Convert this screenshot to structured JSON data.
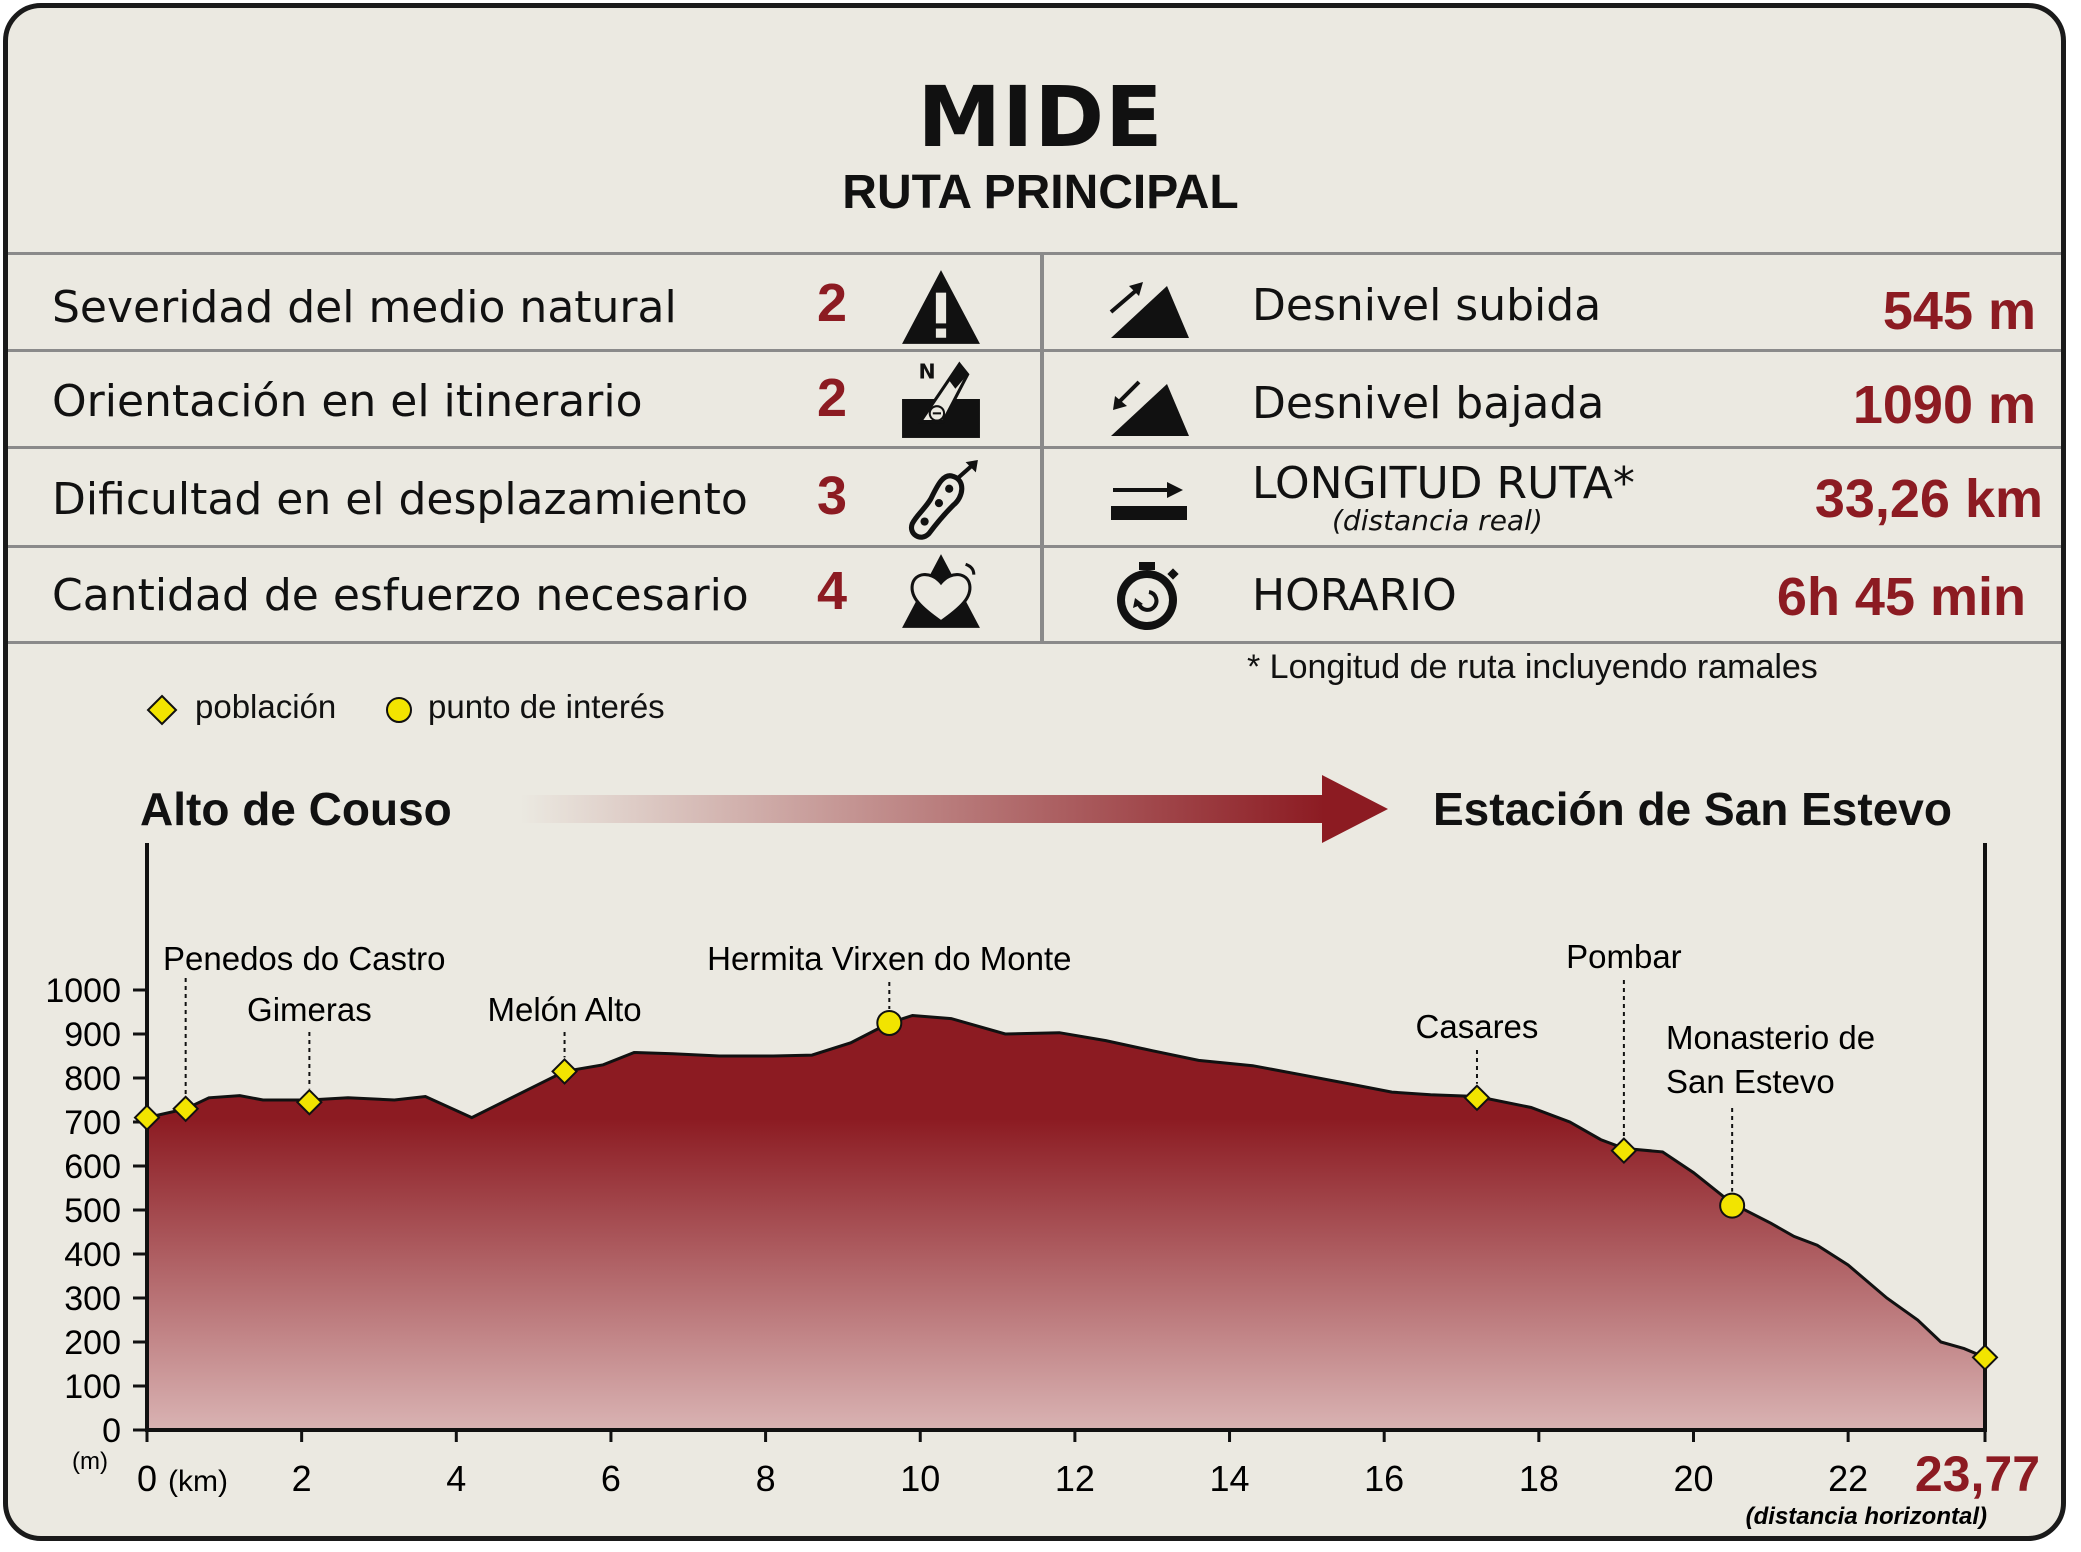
{
  "header": {
    "title": "MIDE",
    "subtitle": "RUTA PRINCIPAL"
  },
  "mide": [
    {
      "label": "Severidad del medio natural",
      "value": "2",
      "icon": "warning-triangle-icon"
    },
    {
      "label": "Orientación en el itinerario",
      "value": "2",
      "icon": "compass-orientation-icon"
    },
    {
      "label": "Dificultad en el desplazamiento",
      "value": "3",
      "icon": "footprint-icon"
    },
    {
      "label": "Cantidad de esfuerzo necesario",
      "value": "4",
      "icon": "heart-effort-icon"
    }
  ],
  "stats": [
    {
      "label": "Desnivel subida",
      "value": "545 m",
      "icon": "ascent-icon"
    },
    {
      "label": "Desnivel bajada",
      "value": "1090 m",
      "icon": "descent-icon"
    },
    {
      "label": "LONGITUD RUTA*",
      "sub": "(distancia real)",
      "value": "33,26 km",
      "icon": "length-arrow-icon"
    },
    {
      "label": "HORARIO",
      "value": "6h 45 min",
      "icon": "stopwatch-icon"
    }
  ],
  "footnote": "* Longitud de ruta incluyendo ramales",
  "legend": {
    "town": "población",
    "poi": "punto de interés"
  },
  "route": {
    "start": "Alto de Couso",
    "end": "Estación de San Estevo"
  },
  "colors": {
    "accent": "#8c1b22",
    "marker": "#f2e400",
    "fill_top": "#8c1b22",
    "fill_bottom": "#d9b3b3",
    "background": "#ebe9e1"
  },
  "chart_data": {
    "type": "area",
    "x_unit": "(km)",
    "y_unit": "(m)",
    "x_end_label": "23,77",
    "x_end_caption": "(distancia horizontal)",
    "xlim": [
      0,
      23.77
    ],
    "ylim": [
      0,
      1000
    ],
    "x_ticks": [
      0,
      2,
      4,
      6,
      8,
      10,
      12,
      14,
      16,
      18,
      20,
      22
    ],
    "y_ticks": [
      0,
      100,
      200,
      300,
      400,
      500,
      600,
      700,
      800,
      900,
      1000
    ],
    "profile": [
      [
        0,
        710
      ],
      [
        0.5,
        730
      ],
      [
        0.8,
        755
      ],
      [
        1.2,
        760
      ],
      [
        1.5,
        750
      ],
      [
        2.1,
        750
      ],
      [
        2.6,
        755
      ],
      [
        3.2,
        750
      ],
      [
        3.6,
        758
      ],
      [
        4.2,
        710
      ],
      [
        4.6,
        745
      ],
      [
        5.0,
        780
      ],
      [
        5.4,
        815
      ],
      [
        5.9,
        830
      ],
      [
        6.3,
        858
      ],
      [
        6.8,
        855
      ],
      [
        7.4,
        850
      ],
      [
        8.1,
        850
      ],
      [
        8.6,
        852
      ],
      [
        9.1,
        880
      ],
      [
        9.6,
        925
      ],
      [
        9.9,
        942
      ],
      [
        10.4,
        935
      ],
      [
        11.1,
        900
      ],
      [
        11.8,
        903
      ],
      [
        12.4,
        885
      ],
      [
        13.0,
        862
      ],
      [
        13.6,
        840
      ],
      [
        14.3,
        828
      ],
      [
        15.0,
        805
      ],
      [
        15.6,
        785
      ],
      [
        16.1,
        768
      ],
      [
        16.6,
        762
      ],
      [
        17.2,
        758
      ],
      [
        17.9,
        733
      ],
      [
        18.4,
        700
      ],
      [
        18.8,
        660
      ],
      [
        19.1,
        640
      ],
      [
        19.6,
        632
      ],
      [
        20.0,
        585
      ],
      [
        20.5,
        515
      ],
      [
        21.0,
        470
      ],
      [
        21.3,
        440
      ],
      [
        21.6,
        420
      ],
      [
        22.0,
        375
      ],
      [
        22.5,
        300
      ],
      [
        22.9,
        250
      ],
      [
        23.2,
        200
      ],
      [
        23.5,
        185
      ],
      [
        23.77,
        165
      ]
    ],
    "points": [
      {
        "name": "",
        "x": 0.0,
        "y": 710,
        "kind": "town"
      },
      {
        "name": "Penedos do Castro",
        "x": 0.5,
        "y": 730,
        "kind": "town"
      },
      {
        "name": "Gimeras",
        "x": 2.1,
        "y": 745,
        "kind": "town"
      },
      {
        "name": "Melón Alto",
        "x": 5.4,
        "y": 815,
        "kind": "town"
      },
      {
        "name": "Hermita Virxen do Monte",
        "x": 9.6,
        "y": 925,
        "kind": "poi"
      },
      {
        "name": "Casares",
        "x": 17.2,
        "y": 755,
        "kind": "town"
      },
      {
        "name": "Pombar",
        "x": 19.1,
        "y": 635,
        "kind": "town"
      },
      {
        "name": "Monasterio de San Estevo",
        "x": 20.5,
        "y": 510,
        "kind": "poi"
      },
      {
        "name": "",
        "x": 23.77,
        "y": 165,
        "kind": "town"
      }
    ]
  }
}
